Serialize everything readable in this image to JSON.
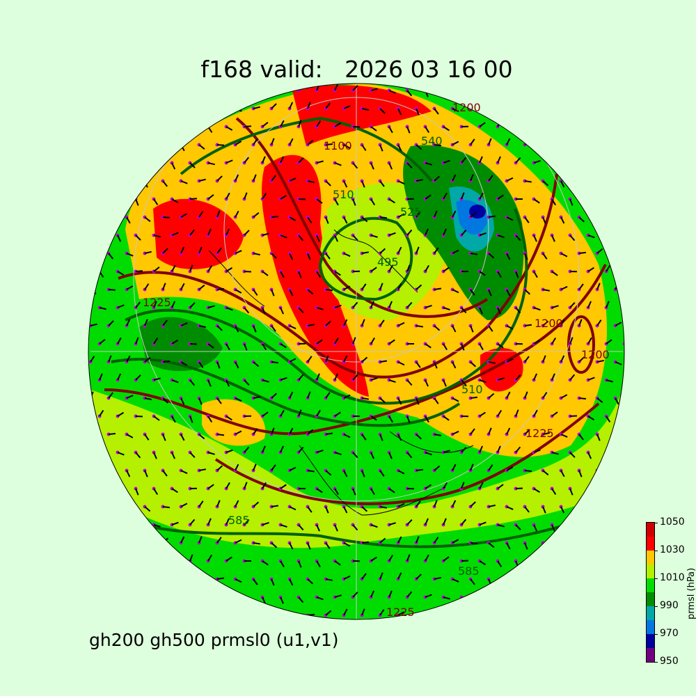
{
  "title": "f168 valid:   2026 03 16 00",
  "subtitle": "gh200 gh500 prmsl0 (u1,v1)",
  "colorbar": {
    "label": "prmsl (hPa)",
    "ticks": [
      "1050",
      "1030",
      "1010",
      "990",
      "970",
      "950"
    ],
    "levels": [
      950,
      960,
      970,
      980,
      990,
      1000,
      1010,
      1020,
      1030,
      1040,
      1050
    ],
    "colors": [
      "#700080",
      "#0000a0",
      "#0078e0",
      "#00a8a8",
      "#008c00",
      "#00dc00",
      "#b4f000",
      "#ffc800",
      "#ff0000",
      "#d00000"
    ]
  },
  "contour_colors": {
    "gh200": "#800000",
    "gh500": "#006000",
    "coast": "#000000",
    "wind_points": "#c000e0"
  },
  "contour_labels": [
    {
      "text": "1200",
      "color": "#800000"
    },
    {
      "text": "1100",
      "color": "#800000"
    },
    {
      "text": "540",
      "color": "#006000"
    },
    {
      "text": "510",
      "color": "#006000"
    },
    {
      "text": "495",
      "color": "#006000"
    },
    {
      "text": "525",
      "color": "#006000"
    },
    {
      "text": "1200",
      "color": "#800000"
    },
    {
      "text": "1225",
      "color": "#800000"
    },
    {
      "text": "510",
      "color": "#006000"
    },
    {
      "text": "1200",
      "color": "#800000"
    },
    {
      "text": "585",
      "color": "#006000"
    },
    {
      "text": "1225",
      "color": "#800000"
    },
    {
      "text": "585",
      "color": "#006000"
    },
    {
      "text": "1225",
      "color": "#800000"
    }
  ]
}
